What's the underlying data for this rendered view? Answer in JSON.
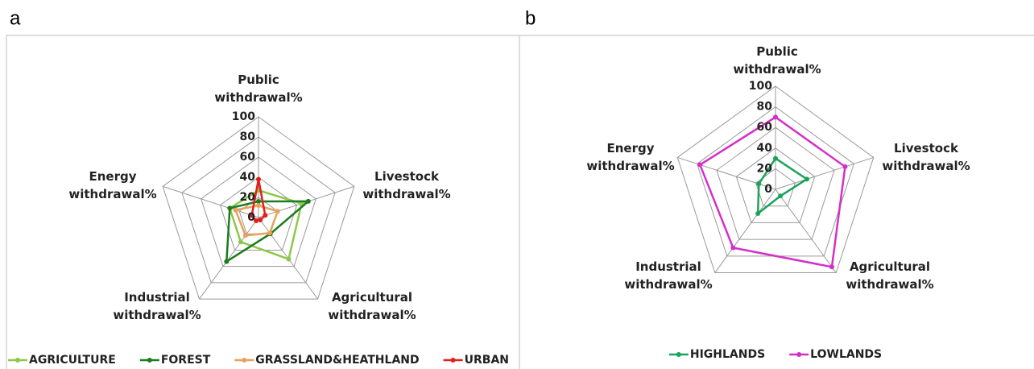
{
  "chart_data": [
    {
      "type": "radar",
      "label": "a",
      "categories": [
        "Public withdrawal%",
        "Livestock withdrawal%",
        "Agricultural withdrawal%",
        "Industrial withdrawal%",
        "Energy withdrawal%"
      ],
      "ylim": [
        0,
        100
      ],
      "yticks": [
        0,
        20,
        40,
        60,
        80,
        100
      ],
      "grid": true,
      "series": [
        {
          "name": "AGRICULTURE",
          "color": "#8cc84b",
          "values": [
            27,
            45,
            51,
            30,
            30
          ]
        },
        {
          "name": "FOREST",
          "color": "#1e7b1e",
          "values": [
            16,
            52,
            20,
            54,
            30
          ]
        },
        {
          "name": "GRASSLAND&HEATHLAND",
          "color": "#e8a25a",
          "values": [
            12,
            20,
            19,
            22,
            24
          ]
        },
        {
          "name": "URBAN",
          "color": "#e0201b",
          "values": [
            38,
            7,
            3,
            4,
            7
          ]
        }
      ]
    },
    {
      "type": "radar",
      "label": "b",
      "categories": [
        "Public withdrawal%",
        "Livestock withdrawal%",
        "Agricultural withdrawal%",
        "Industrial withdrawal%",
        "Energy withdrawal%"
      ],
      "ylim": [
        0,
        100
      ],
      "yticks": [
        0,
        20,
        40,
        60,
        80,
        100
      ],
      "grid": true,
      "series": [
        {
          "name": "HIGHLANDS",
          "color": "#1aa35a",
          "values": [
            30,
            32,
            8,
            29,
            17
          ]
        },
        {
          "name": "LOWLANDS",
          "color": "#d42fc8",
          "values": [
            70,
            71,
            93,
            70,
            77
          ]
        }
      ]
    }
  ]
}
